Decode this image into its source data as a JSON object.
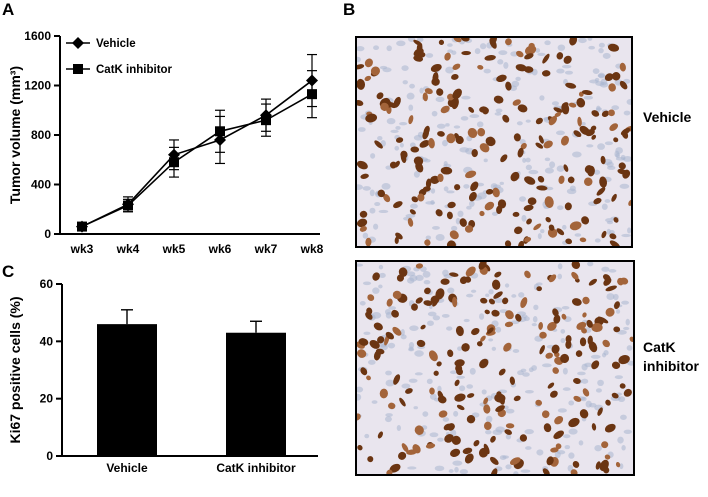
{
  "panels": {
    "a": {
      "letter": "A"
    },
    "b": {
      "letter": "B",
      "top_label": "Vehicle",
      "bottom_label_line1": "CatK",
      "bottom_label_line2": "inhibitor"
    },
    "c": {
      "letter": "C"
    }
  },
  "chart_data": [
    {
      "type": "line",
      "x": [
        "wk3",
        "wk4",
        "wk5",
        "wk6",
        "wk7",
        "wk8"
      ],
      "ylabel": "Tumor volume (mm³)",
      "ylim": [
        0,
        1600
      ],
      "yticks": [
        "0",
        "400",
        "800",
        "1200",
        "1600"
      ],
      "legend_placement": "top-left",
      "grid": false,
      "series": [
        {
          "name": "Vehicle",
          "marker": "diamond",
          "values": [
            60,
            240,
            640,
            760,
            960,
            1240
          ],
          "errors": [
            30,
            60,
            120,
            190,
            130,
            210
          ]
        },
        {
          "name": "CatK inhibitor",
          "marker": "square",
          "values": [
            60,
            230,
            580,
            830,
            920,
            1130
          ],
          "errors": [
            30,
            50,
            120,
            170,
            130,
            190
          ]
        }
      ]
    },
    {
      "type": "bar",
      "categories": [
        "Vehicle",
        "CatK inhibitor"
      ],
      "values": [
        46,
        43
      ],
      "errors": [
        5,
        4
      ],
      "ylabel": "Ki67 positive cells (%)",
      "ylim": [
        0,
        60
      ],
      "yticks": [
        "0",
        "20",
        "40",
        "60"
      ],
      "color": "#000000"
    }
  ],
  "stain_colors": {
    "background": "#e9e5ee",
    "nucleus": "#6b3512",
    "nucleus_light": "#a3643a",
    "counterstain": "#a9b6d0"
  }
}
